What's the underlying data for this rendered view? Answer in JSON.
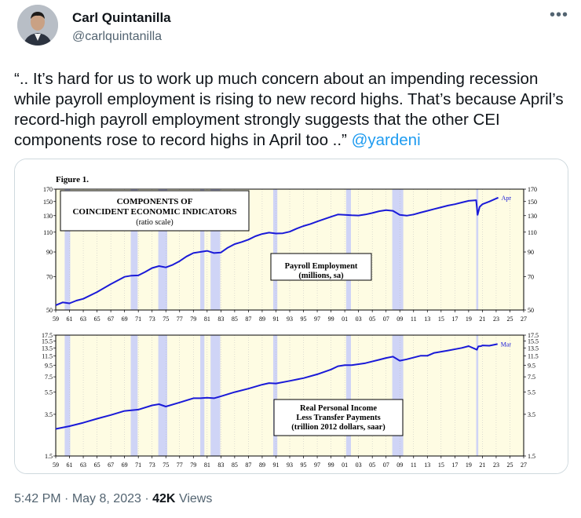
{
  "author": {
    "name": "Carl Quintanilla",
    "handle": "@carlquintanilla"
  },
  "tweet": {
    "text": "“.. It’s hard for us to work up much concern about an impending recession while payroll employment is rising to new record highs. That’s because April’s record-high payroll employment strongly suggests that the other CEI components rose to record highs in April too ..”",
    "mention": "@yardeni"
  },
  "meta": {
    "time": "5:42 PM",
    "sep1": "·",
    "date": "May 8, 2023",
    "sep2": "·",
    "views_count": "42K",
    "views_label": "Views"
  },
  "figure": {
    "figure_label": "Figure 1.",
    "heading_line1": "COMPONENTS OF",
    "heading_line2": "COINCIDENT ECONOMIC INDICATORS",
    "heading_line3": "(ratio scale)",
    "background_color": "#fefce3",
    "recession_color": "#cfd4f6",
    "line_color": "#1a1ad8"
  },
  "chart_data": [
    {
      "type": "line",
      "title": "Payroll Employment",
      "subtitle": "(millions, sa)",
      "end_label": "Apr",
      "yscale": "log",
      "ylim": [
        50,
        170
      ],
      "yticks": [
        "170",
        "150",
        "130",
        "110",
        "90",
        "70",
        "50"
      ],
      "ytick_values": [
        170,
        150,
        130,
        110,
        90,
        70,
        50
      ],
      "xlim": [
        1959,
        2027
      ],
      "xticks": [
        "59",
        "61",
        "63",
        "65",
        "67",
        "69",
        "71",
        "73",
        "75",
        "77",
        "79",
        "81",
        "83",
        "85",
        "87",
        "89",
        "91",
        "93",
        "95",
        "97",
        "99",
        "01",
        "03",
        "05",
        "07",
        "09",
        "11",
        "13",
        "15",
        "17",
        "19",
        "21",
        "23",
        "25",
        "27"
      ],
      "recessions": [
        [
          1960.3,
          1961.1
        ],
        [
          1969.9,
          1970.9
        ],
        [
          1973.9,
          1975.2
        ],
        [
          1980.0,
          1980.6
        ],
        [
          1981.5,
          1982.9
        ],
        [
          1990.6,
          1991.2
        ],
        [
          2001.2,
          2001.9
        ],
        [
          2007.9,
          2009.5
        ],
        [
          2020.1,
          2020.4
        ]
      ],
      "x": [
        1959,
        1960,
        1961,
        1962,
        1963,
        1965,
        1967,
        1969,
        1970,
        1971,
        1972,
        1973,
        1974,
        1975,
        1976,
        1977,
        1978,
        1979,
        1980,
        1981,
        1982,
        1983,
        1984,
        1985,
        1986,
        1987,
        1988,
        1989,
        1990,
        1991,
        1992,
        1993,
        1994,
        1995,
        1996,
        1997,
        1998,
        1999,
        2000,
        2001,
        2002,
        2003,
        2004,
        2005,
        2006,
        2007,
        2008,
        2009,
        2010,
        2011,
        2012,
        2013,
        2014,
        2015,
        2016,
        2017,
        2018,
        2019,
        2020.1,
        2020.3,
        2020.6,
        2021,
        2022,
        2023.3
      ],
      "y": [
        52.5,
        54,
        53.5,
        55,
        56,
        60,
        65,
        70,
        70.8,
        71,
        73.5,
        76.5,
        78,
        77,
        79,
        82,
        86,
        89,
        90,
        91,
        89,
        89.5,
        94,
        97.5,
        99.5,
        102,
        105.5,
        108,
        109.5,
        108.5,
        108.8,
        110.5,
        114,
        117,
        119.5,
        122.5,
        125.5,
        128.5,
        131.5,
        131,
        130.5,
        130.2,
        131.5,
        133.5,
        136,
        137.5,
        136.5,
        131,
        130,
        131.5,
        134,
        136.5,
        139,
        141.5,
        144,
        146,
        148.5,
        151,
        152,
        131,
        142,
        146,
        150,
        156
      ]
    },
    {
      "type": "line",
      "title": "Real Personal Income Less Transfer Payments",
      "subtitle": "(trillion 2012 dollars, saar)",
      "end_label": "Mar",
      "yscale": "log",
      "ylim": [
        1.5,
        17.5
      ],
      "yticks": [
        "17.5",
        "15.5",
        "13.5",
        "11.5",
        "9.5",
        "7.5",
        "5.5",
        "3.5",
        "1.5"
      ],
      "ytick_values": [
        17.5,
        15.5,
        13.5,
        11.5,
        9.5,
        7.5,
        5.5,
        3.5,
        1.5
      ],
      "xlim": [
        1959,
        2027
      ],
      "xticks": [
        "59",
        "61",
        "63",
        "65",
        "67",
        "69",
        "71",
        "73",
        "75",
        "77",
        "79",
        "81",
        "83",
        "85",
        "87",
        "89",
        "91",
        "93",
        "95",
        "97",
        "99",
        "01",
        "03",
        "05",
        "07",
        "09",
        "11",
        "13",
        "15",
        "17",
        "19",
        "21",
        "23",
        "25",
        "27"
      ],
      "recessions": [
        [
          1960.3,
          1961.1
        ],
        [
          1969.9,
          1970.9
        ],
        [
          1973.9,
          1975.2
        ],
        [
          1980.0,
          1980.6
        ],
        [
          1981.5,
          1982.9
        ],
        [
          1990.6,
          1991.2
        ],
        [
          2001.2,
          2001.9
        ],
        [
          2007.9,
          2009.5
        ],
        [
          2020.1,
          2020.4
        ]
      ],
      "x": [
        1959,
        1961,
        1963,
        1965,
        1967,
        1969,
        1970,
        1971,
        1973,
        1974,
        1975,
        1977,
        1979,
        1980,
        1981,
        1982,
        1983,
        1985,
        1987,
        1989,
        1990,
        1991,
        1993,
        1995,
        1997,
        1999,
        2000,
        2001,
        2002,
        2004,
        2006,
        2007,
        2008,
        2009,
        2010,
        2012,
        2013,
        2014,
        2016,
        2018,
        2019,
        2020.2,
        2020.4,
        2020.8,
        2021,
        2022,
        2023.2
      ],
      "y": [
        2.6,
        2.75,
        2.95,
        3.2,
        3.45,
        3.75,
        3.8,
        3.85,
        4.2,
        4.3,
        4.1,
        4.45,
        4.85,
        4.85,
        4.9,
        4.85,
        5.05,
        5.5,
        5.9,
        6.4,
        6.6,
        6.55,
        6.9,
        7.3,
        7.9,
        8.7,
        9.3,
        9.5,
        9.5,
        9.9,
        10.6,
        11.0,
        11.3,
        10.4,
        10.7,
        11.5,
        11.5,
        12.2,
        12.8,
        13.5,
        14.0,
        13.0,
        13.9,
        14.0,
        14.2,
        14.1,
        14.6
      ]
    }
  ]
}
